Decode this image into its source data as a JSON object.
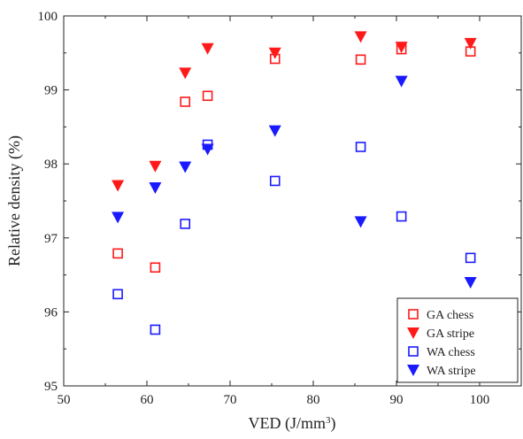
{
  "chart_data": {
    "type": "scatter",
    "xlabel": "VED (J/mm",
    "xlabel_sup": "3",
    "xlabel_tail": ")",
    "ylabel": "Relative density (%)",
    "xlim": [
      50,
      105
    ],
    "ylim": [
      95,
      100
    ],
    "xticks": [
      50,
      60,
      70,
      80,
      90,
      100
    ],
    "yticks": [
      95,
      96,
      97,
      98,
      99,
      100
    ],
    "legend_position": "bottom-right",
    "grid": false,
    "series": [
      {
        "name": "GA chess",
        "color": "#ff1a1a",
        "marker": "open-square",
        "points": [
          [
            56.5,
            96.79
          ],
          [
            61.0,
            96.6
          ],
          [
            64.6,
            98.84
          ],
          [
            67.3,
            98.92
          ],
          [
            75.4,
            99.42
          ],
          [
            85.7,
            99.41
          ],
          [
            90.6,
            99.55
          ],
          [
            98.9,
            99.52
          ]
        ]
      },
      {
        "name": "GA stripe",
        "color": "#ff1a1a",
        "marker": "filled-down-triangle",
        "points": [
          [
            56.5,
            97.71
          ],
          [
            61.0,
            97.97
          ],
          [
            64.6,
            99.23
          ],
          [
            67.3,
            99.56
          ],
          [
            75.4,
            99.5
          ],
          [
            85.7,
            99.72
          ],
          [
            90.6,
            99.58
          ],
          [
            98.9,
            99.63
          ]
        ]
      },
      {
        "name": "WA chess",
        "color": "#1a1aff",
        "marker": "open-square",
        "points": [
          [
            56.5,
            96.24
          ],
          [
            61.0,
            95.76
          ],
          [
            64.6,
            97.19
          ],
          [
            67.3,
            98.26
          ],
          [
            75.4,
            97.77
          ],
          [
            85.7,
            98.23
          ],
          [
            90.6,
            97.29
          ],
          [
            98.9,
            96.73
          ]
        ]
      },
      {
        "name": "WA stripe",
        "color": "#1a1aff",
        "marker": "filled-down-triangle",
        "points": [
          [
            56.5,
            97.28
          ],
          [
            61.0,
            97.68
          ],
          [
            64.6,
            97.96
          ],
          [
            67.3,
            98.2
          ],
          [
            75.4,
            98.45
          ],
          [
            85.7,
            97.22
          ],
          [
            90.6,
            99.12
          ],
          [
            98.9,
            96.4
          ]
        ]
      }
    ]
  }
}
